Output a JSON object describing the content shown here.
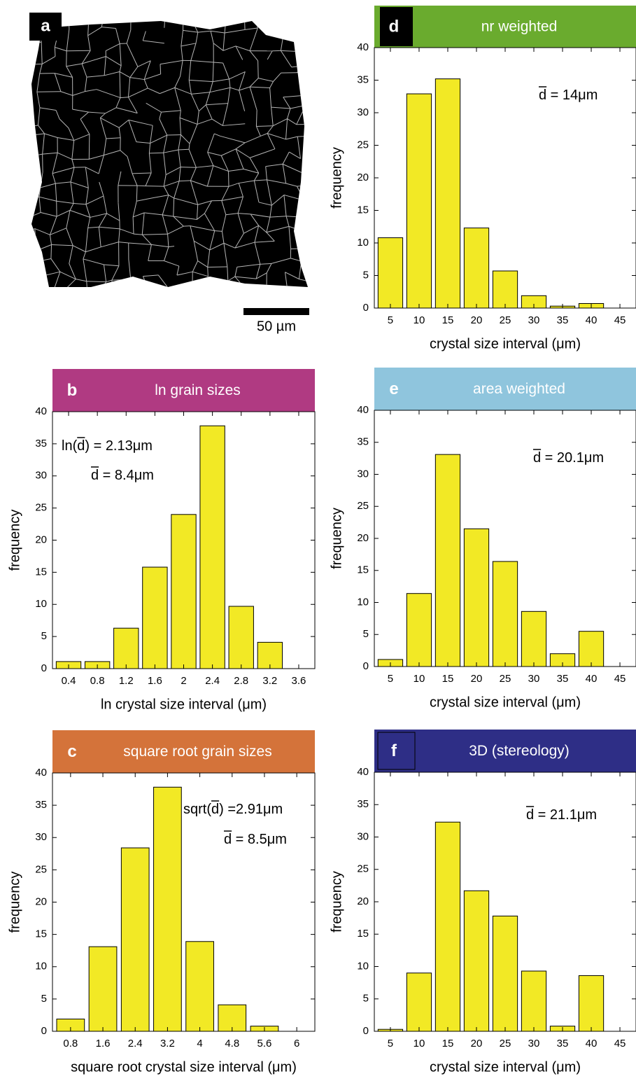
{
  "panel_a": {
    "label": "a",
    "scale_bar_label": "50 µm"
  },
  "chart_data": [
    {
      "type": "bar",
      "panel_label": "b",
      "title": "ln grain sizes",
      "header_color": "#b03a82",
      "annotations": [
        {
          "pre": "ln(",
          "over": "d",
          "post": ") = 2.13μm"
        },
        {
          "over": "d",
          "post": " = 8.4μm"
        }
      ],
      "categories": [
        "0.4",
        "0.8",
        "1.2",
        "1.6",
        "2",
        "2.4",
        "2.8",
        "3.2",
        "3.6"
      ],
      "values": [
        1.1,
        1.1,
        6.3,
        15.8,
        24,
        37.8,
        9.7,
        4.1,
        0
      ],
      "color": "#f2e925",
      "xlabel": "ln crystal size interval (μm)",
      "ylabel": "frequency",
      "ylim": [
        0,
        40
      ],
      "yticks": [
        0,
        5,
        10,
        15,
        20,
        25,
        30,
        35,
        40
      ]
    },
    {
      "type": "bar",
      "panel_label": "c",
      "title": "square root grain sizes",
      "header_color": "#d4733a",
      "annotations": [
        {
          "pre": "sqrt(",
          "over": "d",
          "post": ") =2.91μm"
        },
        {
          "over": "d",
          "post": " = 8.5μm"
        }
      ],
      "categories": [
        "0.8",
        "1.6",
        "2.4",
        "3.2",
        "4",
        "4.8",
        "5.6",
        "6"
      ],
      "values": [
        1.9,
        13.1,
        28.4,
        37.8,
        13.9,
        4.1,
        0.8,
        0
      ],
      "color": "#f2e925",
      "xlabel": "square root crystal size interval (μm)",
      "ylabel": "frequency",
      "ylim": [
        0,
        40
      ],
      "yticks": [
        0,
        5,
        10,
        15,
        20,
        25,
        30,
        35,
        40
      ]
    },
    {
      "type": "bar",
      "panel_label": "d",
      "title": "nr weighted",
      "header_color": "#6aab2e",
      "annotations": [
        {
          "over": "d",
          "post": " = 14μm"
        }
      ],
      "categories": [
        "5",
        "10",
        "15",
        "20",
        "25",
        "30",
        "35",
        "40",
        "45"
      ],
      "values": [
        10.8,
        32.9,
        35.2,
        12.3,
        5.7,
        1.9,
        0.3,
        0.7,
        0
      ],
      "color": "#f2e925",
      "xlabel": "crystal size interval (μm)",
      "ylabel": "frequency",
      "ylim": [
        0,
        40
      ],
      "yticks": [
        0,
        5,
        10,
        15,
        20,
        25,
        30,
        35,
        40
      ]
    },
    {
      "type": "bar",
      "panel_label": "e",
      "title": "area weighted",
      "header_color": "#8fc5dd",
      "annotations": [
        {
          "over": "d",
          "post": " = 20.1μm"
        }
      ],
      "categories": [
        "5",
        "10",
        "15",
        "20",
        "25",
        "30",
        "35",
        "40",
        "45"
      ],
      "values": [
        1.1,
        11.4,
        33.1,
        21.5,
        16.4,
        8.6,
        2.0,
        5.5,
        0
      ],
      "color": "#f2e925",
      "xlabel": "crystal size interval (μm)",
      "ylabel": "frequency",
      "ylim": [
        0,
        40
      ],
      "yticks": [
        0,
        5,
        10,
        15,
        20,
        25,
        30,
        35,
        40
      ]
    },
    {
      "type": "bar",
      "panel_label": "f",
      "title": "3D (stereology)",
      "header_color": "#2e2e86",
      "annotations": [
        {
          "over": "d",
          "post": " = 21.1μm"
        }
      ],
      "categories": [
        "5",
        "10",
        "15",
        "20",
        "25",
        "30",
        "35",
        "40",
        "45"
      ],
      "values": [
        0.3,
        9.0,
        32.3,
        21.7,
        17.8,
        9.3,
        0.8,
        8.6,
        0
      ],
      "color": "#f2e925",
      "xlabel": "crystal size interval (μm)",
      "ylabel": "frequency",
      "ylim": [
        0,
        40
      ],
      "yticks": [
        0,
        5,
        10,
        15,
        20,
        25,
        30,
        35,
        40
      ]
    }
  ]
}
